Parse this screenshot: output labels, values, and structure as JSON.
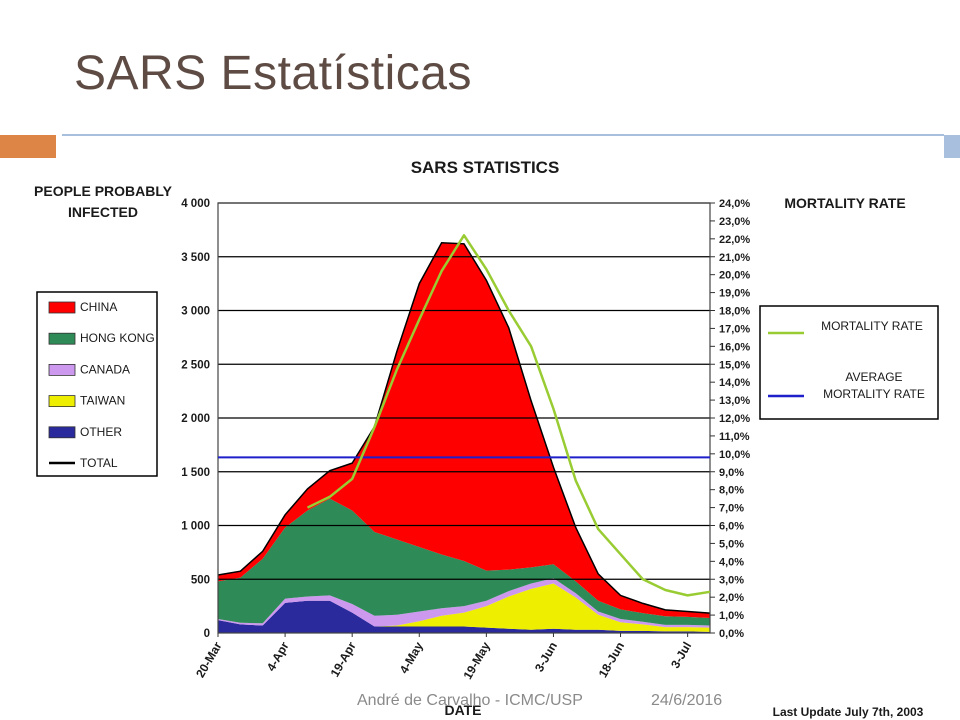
{
  "slide": {
    "title": "SARS Estatísticas",
    "footer_author": "André de Carvalho - ICMC/USP",
    "footer_date": "24/6/2016"
  },
  "colors": {
    "title": "#5d4b44",
    "accent_orange": "#dd8547",
    "accent_blue": "#a8c0de",
    "china": "#ff0000",
    "hong_kong": "#2e8b57",
    "canada": "#cc99ee",
    "taiwan": "#eeee00",
    "other": "#2a2a9c",
    "total": "#000000",
    "mortality_rate": "#99cc33",
    "average_mortality_rate": "#1f1fcc"
  },
  "chart_data": {
    "type": "area",
    "title": "SARS STATISTICS",
    "xlabel": "DATE",
    "ylabel": "PEOPLE PROBABLY INFECTED",
    "y2label": "MORTALITY RATE",
    "ylim": [
      0,
      4000
    ],
    "y2lim": [
      0,
      24
    ],
    "yticks": [
      "0",
      "500",
      "1 000",
      "1 500",
      "2 000",
      "2 500",
      "3 000",
      "3 500",
      "4 000"
    ],
    "y2ticks": [
      "0,0%",
      "1,0%",
      "2,0%",
      "3,0%",
      "4,0%",
      "5,0%",
      "6,0%",
      "7,0%",
      "8,0%",
      "9,0%",
      "10,0%",
      "11,0%",
      "12,0%",
      "13,0%",
      "14,0%",
      "15,0%",
      "16,0%",
      "17,0%",
      "18,0%",
      "19,0%",
      "20,0%",
      "21,0%",
      "22,0%",
      "23,0%",
      "24,0%"
    ],
    "xticks": [
      "20-Mar",
      "4-Apr",
      "19-Apr",
      "4-May",
      "19-May",
      "3-Jun",
      "18-Jun",
      "3-Jul"
    ],
    "grid": true,
    "stacked": true,
    "x": [
      "20-Mar",
      "25-Mar",
      "30-Mar",
      "4-Apr",
      "9-Apr",
      "14-Apr",
      "19-Apr",
      "24-Apr",
      "29-Apr",
      "4-May",
      "9-May",
      "14-May",
      "19-May",
      "24-May",
      "29-May",
      "3-Jun",
      "8-Jun",
      "13-Jun",
      "18-Jun",
      "23-Jun",
      "28-Jun",
      "3-Jul",
      "8-Jul"
    ],
    "series": [
      {
        "name": "OTHER",
        "values": [
          120,
          80,
          70,
          280,
          300,
          300,
          190,
          60,
          60,
          60,
          60,
          60,
          50,
          40,
          30,
          40,
          30,
          30,
          20,
          20,
          15,
          15,
          10
        ]
      },
      {
        "name": "TAIWAN",
        "values": [
          0,
          0,
          0,
          0,
          0,
          0,
          0,
          0,
          10,
          50,
          100,
          130,
          200,
          300,
          380,
          420,
          300,
          140,
          80,
          60,
          40,
          40,
          40
        ]
      },
      {
        "name": "CANADA",
        "values": [
          10,
          15,
          20,
          40,
          40,
          50,
          80,
          100,
          100,
          90,
          70,
          60,
          50,
          50,
          50,
          50,
          40,
          30,
          30,
          25,
          20,
          20,
          20
        ]
      },
      {
        "name": "HONG KONG",
        "values": [
          350,
          420,
          600,
          660,
          800,
          900,
          870,
          780,
          700,
          600,
          500,
          420,
          280,
          200,
          150,
          130,
          110,
          100,
          90,
          80,
          80,
          75,
          70
        ]
      },
      {
        "name": "CHINA",
        "values": [
          60,
          60,
          70,
          120,
          200,
          260,
          440,
          980,
          1750,
          2450,
          2900,
          2950,
          2700,
          2250,
          1550,
          900,
          500,
          250,
          130,
          90,
          60,
          50,
          45
        ]
      }
    ],
    "mortality_rate": {
      "name": "MORTALITY RATE",
      "start_index": 4,
      "values": [
        7.0,
        7.6,
        8.6,
        11.5,
        14.7,
        17.5,
        20.2,
        22.2,
        20.3,
        18.0,
        16.0,
        12.5,
        8.5,
        5.8,
        4.4,
        3.0,
        2.4,
        2.1,
        2.3
      ]
    },
    "average_mortality_rate": {
      "name": "AVERAGE MORTALITY RATE",
      "value": 9.8
    },
    "legend": {
      "items": [
        "CHINA",
        "HONG KONG",
        "CANADA",
        "TAIWAN",
        "OTHER",
        "TOTAL"
      ],
      "placement": "left"
    },
    "legend_right": {
      "items": [
        "MORTALITY RATE",
        "AVERAGE MORTALITY RATE"
      ],
      "placement": "right"
    },
    "annotations": {
      "last_update": "Last Update July 7th, 2003"
    }
  }
}
